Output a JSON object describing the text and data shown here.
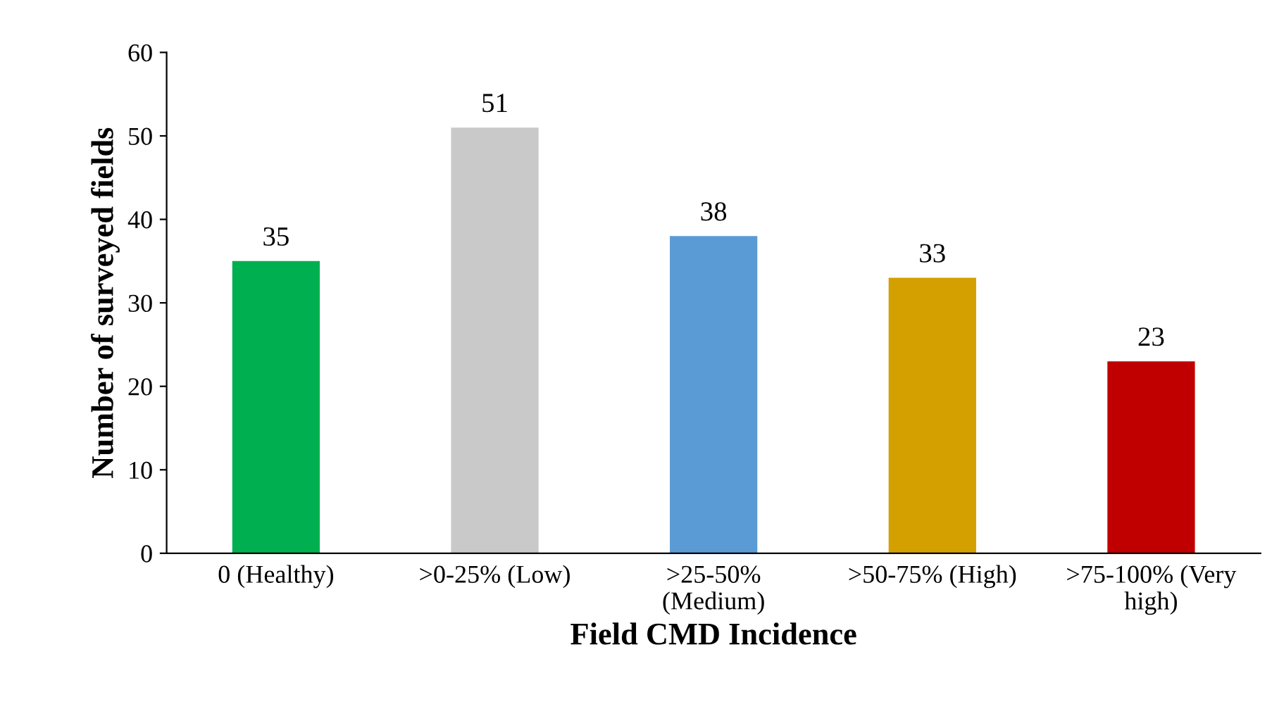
{
  "chart_data": {
    "type": "bar",
    "xlabel": "Field CMD Incidence",
    "ylabel": "Number of surveyed fields",
    "categories": [
      "0 (Healthy)",
      ">0-25% (Low)",
      ">25-50%\n(Medium)",
      ">50-75% (High)",
      ">75-100% (Very\nhigh)"
    ],
    "values": [
      35,
      51,
      38,
      33,
      23
    ],
    "colors": [
      "#00b050",
      "#c9c9c9",
      "#5b9bd5",
      "#d4a000",
      "#c00000"
    ],
    "ylim": [
      0,
      60
    ],
    "yticks": [
      0,
      10,
      20,
      30,
      40,
      50,
      60
    ],
    "data_labels": true,
    "grid": false,
    "legend": false
  }
}
